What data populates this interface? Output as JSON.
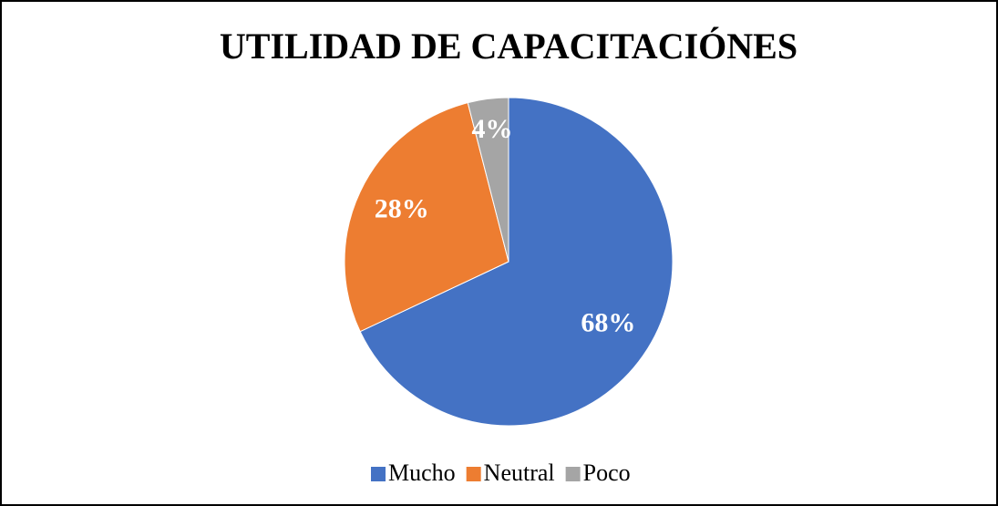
{
  "chart_data": {
    "type": "pie",
    "title": "UTILIDAD DE CAPACITACIÓNES",
    "categories": [
      "Mucho",
      "Neutral",
      "Poco"
    ],
    "values": [
      68,
      28,
      4
    ],
    "value_labels": [
      "68%",
      "28%",
      "4%"
    ],
    "colors": [
      "#4472c4",
      "#ed7d31",
      "#a5a5a5"
    ],
    "legend": "bottom"
  }
}
